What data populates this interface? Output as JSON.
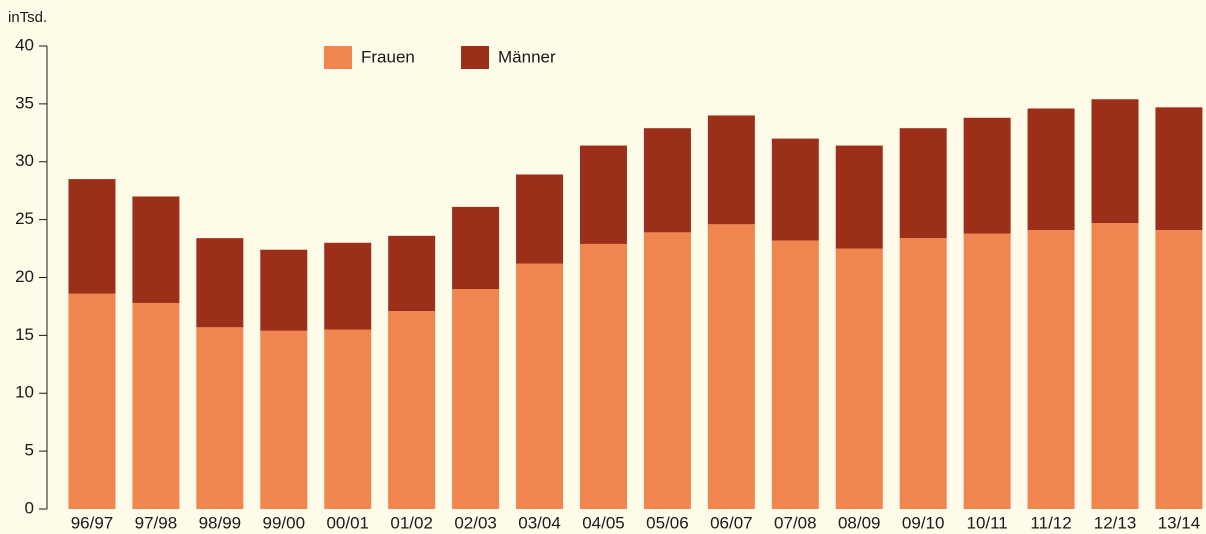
{
  "chart_data": {
    "type": "stacked_bar",
    "y_axis_label": "inTsd.",
    "categories": [
      "96/97",
      "97/98",
      "98/99",
      "99/00",
      "00/01",
      "01/02",
      "02/03",
      "03/04",
      "04/05",
      "05/06",
      "06/07",
      "07/08",
      "08/09",
      "09/10",
      "10/11",
      "11/12",
      "12/13",
      "13/14"
    ],
    "series": [
      {
        "name": "Frauen",
        "color": "#f0854f",
        "values": [
          18.6,
          17.8,
          15.7,
          15.4,
          15.5,
          17.1,
          19.0,
          21.2,
          22.9,
          23.9,
          24.6,
          23.2,
          22.5,
          23.4,
          23.8,
          24.1,
          24.7,
          24.1
        ]
      },
      {
        "name": "Männer",
        "color": "#9c2f1a",
        "values": [
          9.9,
          9.2,
          7.7,
          7.0,
          7.5,
          6.5,
          7.1,
          7.7,
          8.5,
          9.0,
          9.4,
          8.8,
          8.9,
          9.5,
          10.0,
          10.5,
          10.7,
          10.6
        ]
      }
    ],
    "ylim": [
      0,
      40
    ],
    "yticks": [
      0,
      5,
      10,
      15,
      20,
      25,
      30,
      35,
      40
    ],
    "grid": false
  }
}
